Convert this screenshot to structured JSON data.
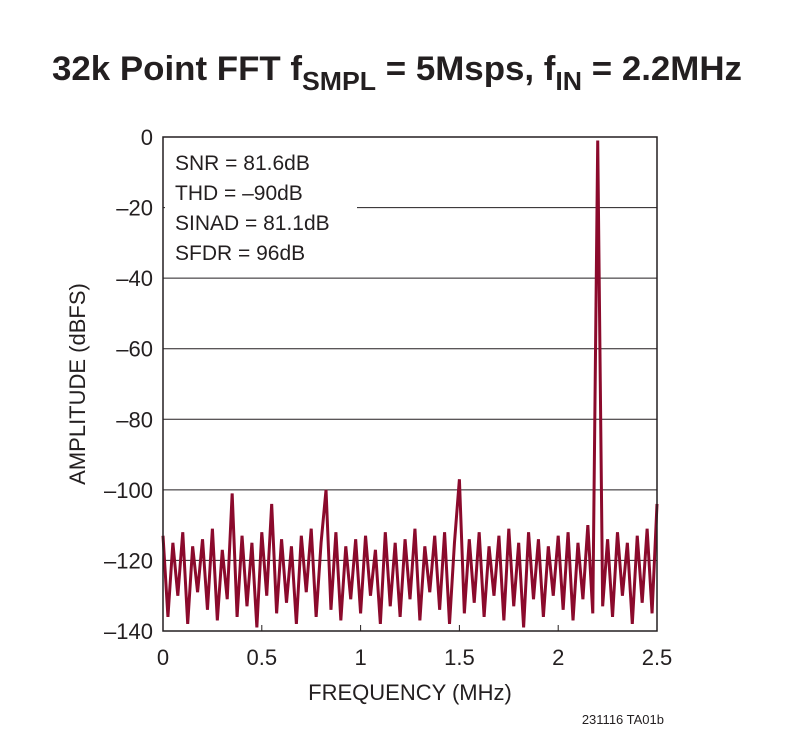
{
  "chart_data": {
    "type": "line",
    "title": {
      "parts": [
        "32k Point FFT f",
        "SMPL",
        " = 5Msps, f",
        "IN",
        " = 2.2MHz"
      ]
    },
    "x_label": "FREQUENCY (MHz)",
    "y_label": "AMPLITUDE (dBFS)",
    "annotations": [
      "SNR = 81.6dB",
      "THD = –90dB",
      "SINAD = 81.1dB",
      "SFDR = 96dB"
    ],
    "footnote": "231116 TA01b",
    "xlim": [
      0,
      2.5
    ],
    "xticks": [
      0,
      0.5,
      1,
      1.5,
      2,
      2.5
    ],
    "ylim": [
      -140,
      0
    ],
    "yticks": [
      0,
      {
        "value": -20,
        "label": "–20"
      },
      {
        "value": -40,
        "label": "–40"
      },
      {
        "value": -60,
        "label": "–60"
      },
      {
        "value": -80,
        "label": "–80"
      },
      {
        "value": -100,
        "label": "–100"
      },
      {
        "value": -120,
        "label": "–120"
      },
      {
        "value": -140,
        "label": "–140"
      }
    ],
    "grid": true,
    "x": [
      0,
      0.025,
      0.05,
      0.075,
      0.1,
      0.125,
      0.15,
      0.175,
      0.2,
      0.225,
      0.25,
      0.275,
      0.3,
      0.325,
      0.35,
      0.375,
      0.4,
      0.425,
      0.45,
      0.475,
      0.5,
      0.525,
      0.55,
      0.575,
      0.6,
      0.625,
      0.65,
      0.675,
      0.7,
      0.725,
      0.75,
      0.775,
      0.8,
      0.825,
      0.85,
      0.875,
      0.9,
      0.925,
      0.95,
      0.975,
      1,
      1.025,
      1.05,
      1.075,
      1.1,
      1.125,
      1.15,
      1.175,
      1.2,
      1.225,
      1.25,
      1.275,
      1.3,
      1.325,
      1.35,
      1.375,
      1.4,
      1.425,
      1.45,
      1.475,
      1.5,
      1.525,
      1.55,
      1.575,
      1.6,
      1.625,
      1.65,
      1.675,
      1.7,
      1.725,
      1.75,
      1.775,
      1.8,
      1.825,
      1.85,
      1.875,
      1.9,
      1.925,
      1.95,
      1.975,
      2,
      2.025,
      2.05,
      2.075,
      2.1,
      2.125,
      2.15,
      2.175,
      2.2,
      2.225,
      2.25,
      2.275,
      2.3,
      2.325,
      2.35,
      2.375,
      2.4,
      2.425,
      2.45,
      2.475,
      2.5
    ],
    "series": [
      {
        "color": "#8b0a2c",
        "values": [
          -113,
          -136,
          -115,
          -130,
          -112,
          -138,
          -116,
          -129,
          -114,
          -134,
          -111,
          -137,
          -117,
          -131,
          -101,
          -136,
          -113,
          -133,
          -115,
          -139,
          -112,
          -130,
          -104,
          -135,
          -114,
          -132,
          -116,
          -138,
          -113,
          -129,
          -111,
          -136,
          -115,
          -100,
          -134,
          -112,
          -137,
          -116,
          -131,
          -114,
          -135,
          -113,
          -130,
          -117,
          -138,
          -112,
          -133,
          -115,
          -136,
          -114,
          -131,
          -111,
          -137,
          -116,
          -129,
          -113,
          -134,
          -112,
          -138,
          -115,
          -97,
          -135,
          -114,
          -132,
          -112,
          -136,
          -116,
          -130,
          -113,
          -137,
          -111,
          -133,
          -115,
          -139,
          -112,
          -131,
          -114,
          -136,
          -116,
          -130,
          -113,
          -134,
          -112,
          -137,
          -115,
          -131,
          -110,
          -135,
          -1,
          -133,
          -114,
          -136,
          -112,
          -130,
          -115,
          -138,
          -113,
          -132,
          -111,
          -135,
          -104
        ]
      }
    ]
  }
}
